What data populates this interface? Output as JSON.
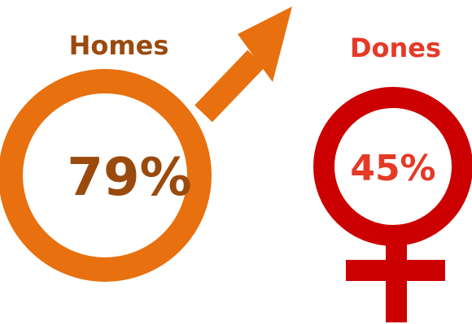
{
  "chart_data": {
    "type": "pictogram",
    "categories": [
      "Homes",
      "Dones"
    ],
    "series": [
      {
        "values": [
          79,
          45
        ]
      }
    ],
    "value_labels": [
      "79%",
      "45%"
    ],
    "symbols": [
      "male-symbol-icon",
      "female-symbol-icon"
    ]
  },
  "colors": {
    "male_symbol": "#e8700e",
    "male_text": "#9a4a0c",
    "female_symbol": "#cc0000",
    "female_text": "#e53a28",
    "background": "#ffffff"
  }
}
